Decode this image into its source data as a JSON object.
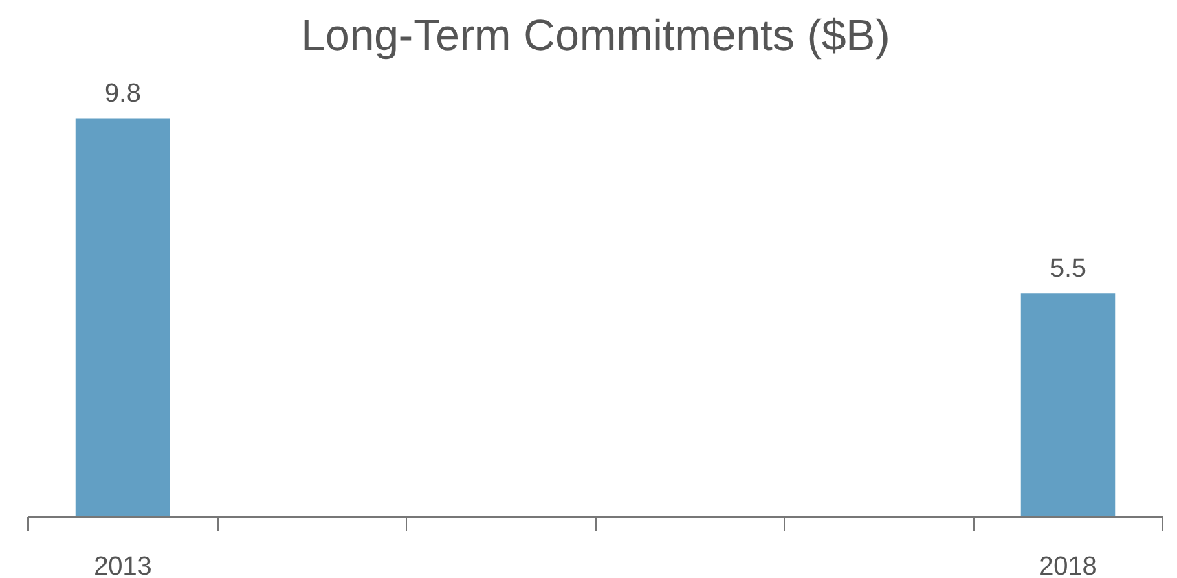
{
  "chart_data": {
    "type": "bar",
    "title": "Long-Term Commitments ($B)",
    "categories": [
      "2013",
      null,
      null,
      null,
      null,
      "2018"
    ],
    "values": [
      9.8,
      null,
      null,
      null,
      null,
      5.5
    ],
    "color": "#629fc4",
    "data_labels": true,
    "grid": false,
    "tick_labels": "x"
  }
}
